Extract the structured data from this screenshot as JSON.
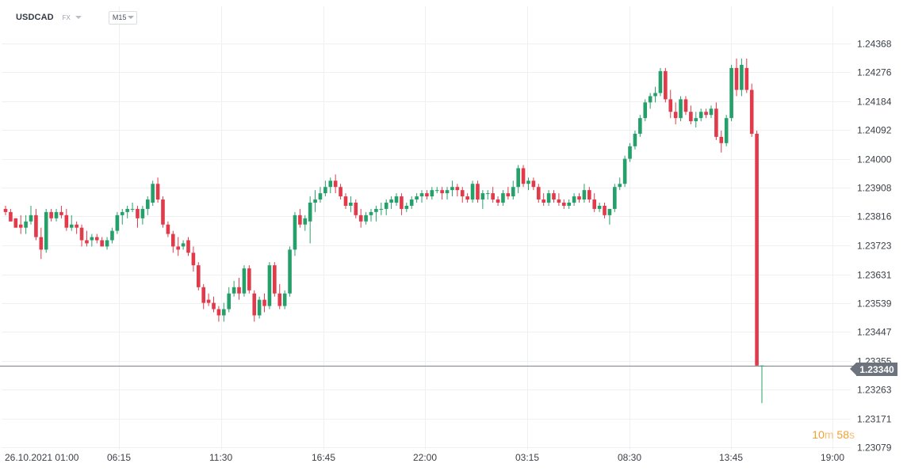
{
  "header": {
    "symbol": "USDCAD",
    "market": "FX",
    "timeframe": "M15"
  },
  "countdown": {
    "minutes": "10",
    "min_unit": "m",
    "seconds": "58",
    "sec_unit": "s"
  },
  "current_price": {
    "label": "1.23340",
    "value": 1.2334
  },
  "colors": {
    "up": "#26a06a",
    "down": "#e03a4b",
    "grid": "#eef0f2",
    "price_line": "#7b8089",
    "axis_text": "#3a3f47"
  },
  "chart_data": {
    "type": "candlestick",
    "y_ticks": [
      "1.24368",
      "1.24276",
      "1.24184",
      "1.24092",
      "1.24000",
      "1.23908",
      "1.23816",
      "1.23723",
      "1.23631",
      "1.23539",
      "1.23447",
      "1.23355",
      "1.23263",
      "1.23171",
      "1.23079"
    ],
    "ylim": [
      1.23079,
      1.24368
    ],
    "x_ticks": [
      "26.10.2021  01:00",
      "06:15",
      "11:30",
      "16:45",
      "22:00",
      "03:15",
      "08:30",
      "13:45",
      "19:00"
    ],
    "grid": true,
    "candles": [
      [
        1.2384,
        1.2385,
        1.2382,
        1.2383
      ],
      [
        1.2383,
        1.2384,
        1.238,
        1.238
      ],
      [
        1.2381,
        1.2381,
        1.2378,
        1.2378
      ],
      [
        1.2379,
        1.2382,
        1.2376,
        1.2378
      ],
      [
        1.2378,
        1.2382,
        1.2376,
        1.238
      ],
      [
        1.238,
        1.2385,
        1.2379,
        1.2382
      ],
      [
        1.2382,
        1.2384,
        1.2374,
        1.2375
      ],
      [
        1.2375,
        1.2378,
        1.2368,
        1.2371
      ],
      [
        1.2371,
        1.2384,
        1.237,
        1.2383
      ],
      [
        1.2383,
        1.2384,
        1.238,
        1.2381
      ],
      [
        1.2381,
        1.2384,
        1.238,
        1.2383
      ],
      [
        1.2383,
        1.2385,
        1.2381,
        1.2382
      ],
      [
        1.2382,
        1.2384,
        1.2377,
        1.2378
      ],
      [
        1.2378,
        1.2382,
        1.2377,
        1.2379
      ],
      [
        1.2379,
        1.238,
        1.2376,
        1.2378
      ],
      [
        1.2378,
        1.2379,
        1.2372,
        1.2374
      ],
      [
        1.2374,
        1.2377,
        1.2372,
        1.2373
      ],
      [
        1.2374,
        1.2376,
        1.2372,
        1.2375
      ],
      [
        1.2375,
        1.2376,
        1.2373,
        1.2374
      ],
      [
        1.2374,
        1.2375,
        1.2372,
        1.2372
      ],
      [
        1.2372,
        1.2375,
        1.2371,
        1.2374
      ],
      [
        1.2374,
        1.2378,
        1.2373,
        1.2377
      ],
      [
        1.2377,
        1.2383,
        1.2376,
        1.2382
      ],
      [
        1.2382,
        1.2384,
        1.2379,
        1.2383
      ],
      [
        1.2383,
        1.2385,
        1.2381,
        1.2384
      ],
      [
        1.2384,
        1.2386,
        1.2383,
        1.2384
      ],
      [
        1.2384,
        1.2385,
        1.2378,
        1.2381
      ],
      [
        1.2381,
        1.2385,
        1.2379,
        1.2384
      ],
      [
        1.2384,
        1.2388,
        1.2382,
        1.2387
      ],
      [
        1.2386,
        1.2393,
        1.2385,
        1.2392
      ],
      [
        1.2392,
        1.2394,
        1.2386,
        1.2387
      ],
      [
        1.2387,
        1.2388,
        1.2378,
        1.2379
      ],
      [
        1.2379,
        1.238,
        1.2375,
        1.2376
      ],
      [
        1.2376,
        1.2377,
        1.237,
        1.2372
      ],
      [
        1.2372,
        1.2375,
        1.2369,
        1.2371
      ],
      [
        1.2372,
        1.2374,
        1.2371,
        1.2373
      ],
      [
        1.2374,
        1.2375,
        1.2369,
        1.237
      ],
      [
        1.237,
        1.2372,
        1.2364,
        1.2366
      ],
      [
        1.2366,
        1.2367,
        1.2358,
        1.2359
      ],
      [
        1.2359,
        1.236,
        1.2352,
        1.2354
      ],
      [
        1.2355,
        1.2357,
        1.2353,
        1.2354
      ],
      [
        1.2354,
        1.2356,
        1.2351,
        1.2352
      ],
      [
        1.2352,
        1.2353,
        1.2348,
        1.235
      ],
      [
        1.235,
        1.2354,
        1.2348,
        1.2352
      ],
      [
        1.2352,
        1.2359,
        1.2351,
        1.2357
      ],
      [
        1.2357,
        1.2361,
        1.2356,
        1.2359
      ],
      [
        1.2359,
        1.2362,
        1.2355,
        1.2357
      ],
      [
        1.2357,
        1.2366,
        1.2356,
        1.2365
      ],
      [
        1.2365,
        1.2366,
        1.2357,
        1.2358
      ],
      [
        1.2357,
        1.2358,
        1.2348,
        1.235
      ],
      [
        1.235,
        1.2356,
        1.2349,
        1.2355
      ],
      [
        1.2355,
        1.2357,
        1.2351,
        1.2353
      ],
      [
        1.2353,
        1.2367,
        1.2352,
        1.2366
      ],
      [
        1.2366,
        1.2367,
        1.2356,
        1.2357
      ],
      [
        1.2357,
        1.236,
        1.2352,
        1.2353
      ],
      [
        1.2353,
        1.2358,
        1.2352,
        1.2357
      ],
      [
        1.2357,
        1.2372,
        1.2356,
        1.2371
      ],
      [
        1.2371,
        1.2383,
        1.2369,
        1.2382
      ],
      [
        1.2382,
        1.2384,
        1.2378,
        1.2379
      ],
      [
        1.2379,
        1.2382,
        1.2377,
        1.2381
      ],
      [
        1.238,
        1.2388,
        1.2373,
        1.2386
      ],
      [
        1.2386,
        1.239,
        1.2383,
        1.2387
      ],
      [
        1.2387,
        1.2391,
        1.2386,
        1.2389
      ],
      [
        1.2389,
        1.2393,
        1.2388,
        1.2391
      ],
      [
        1.2391,
        1.2394,
        1.2389,
        1.2393
      ],
      [
        1.2393,
        1.2395,
        1.2389,
        1.2391
      ],
      [
        1.2391,
        1.2392,
        1.2387,
        1.2388
      ],
      [
        1.2388,
        1.2389,
        1.2384,
        1.2385
      ],
      [
        1.2385,
        1.2388,
        1.2383,
        1.2386
      ],
      [
        1.2386,
        1.2387,
        1.2381,
        1.2382
      ],
      [
        1.2382,
        1.2384,
        1.2378,
        1.238
      ],
      [
        1.238,
        1.2383,
        1.2379,
        1.2382
      ],
      [
        1.2382,
        1.2384,
        1.238,
        1.2383
      ],
      [
        1.2383,
        1.2385,
        1.238,
        1.2384
      ],
      [
        1.2384,
        1.2386,
        1.2382,
        1.2384
      ],
      [
        1.2384,
        1.2387,
        1.2382,
        1.2386
      ],
      [
        1.2386,
        1.2388,
        1.2384,
        1.2387
      ],
      [
        1.2386,
        1.2389,
        1.2385,
        1.2388
      ],
      [
        1.2388,
        1.2389,
        1.2382,
        1.2384
      ],
      [
        1.2384,
        1.2386,
        1.2383,
        1.2385
      ],
      [
        1.2385,
        1.2388,
        1.2384,
        1.2387
      ],
      [
        1.2387,
        1.2389,
        1.2386,
        1.2388
      ],
      [
        1.2388,
        1.239,
        1.2386,
        1.2389
      ],
      [
        1.2389,
        1.239,
        1.2387,
        1.2388
      ],
      [
        1.2388,
        1.2391,
        1.2387,
        1.239
      ],
      [
        1.239,
        1.2391,
        1.2389,
        1.239
      ],
      [
        1.239,
        1.2391,
        1.2387,
        1.2389
      ],
      [
        1.2389,
        1.2391,
        1.2387,
        1.239
      ],
      [
        1.239,
        1.2393,
        1.2388,
        1.2391
      ],
      [
        1.2391,
        1.2392,
        1.2388,
        1.239
      ],
      [
        1.239,
        1.2391,
        1.2386,
        1.2388
      ],
      [
        1.2388,
        1.2389,
        1.2386,
        1.2387
      ],
      [
        1.2387,
        1.2393,
        1.2386,
        1.2392
      ],
      [
        1.2392,
        1.2393,
        1.2386,
        1.2387
      ],
      [
        1.2387,
        1.239,
        1.2384,
        1.2389
      ],
      [
        1.2389,
        1.239,
        1.2387,
        1.2389
      ],
      [
        1.2389,
        1.2391,
        1.2386,
        1.2387
      ],
      [
        1.2387,
        1.2388,
        1.2385,
        1.2386
      ],
      [
        1.2386,
        1.239,
        1.2385,
        1.2389
      ],
      [
        1.2389,
        1.2391,
        1.2387,
        1.2388
      ],
      [
        1.2388,
        1.2393,
        1.2387,
        1.2391
      ],
      [
        1.2391,
        1.2398,
        1.2389,
        1.2397
      ],
      [
        1.2397,
        1.2398,
        1.2391,
        1.2392
      ],
      [
        1.2392,
        1.2394,
        1.239,
        1.2393
      ],
      [
        1.2393,
        1.2394,
        1.239,
        1.2391
      ],
      [
        1.2391,
        1.2392,
        1.2386,
        1.2387
      ],
      [
        1.2387,
        1.2389,
        1.2385,
        1.2386
      ],
      [
        1.2386,
        1.239,
        1.2385,
        1.2389
      ],
      [
        1.2389,
        1.239,
        1.2386,
        1.2387
      ],
      [
        1.2387,
        1.2389,
        1.2385,
        1.2386
      ],
      [
        1.2386,
        1.2387,
        1.2384,
        1.2385
      ],
      [
        1.2385,
        1.2387,
        1.2384,
        1.2386
      ],
      [
        1.2386,
        1.2389,
        1.2385,
        1.2388
      ],
      [
        1.2388,
        1.2389,
        1.2386,
        1.2387
      ],
      [
        1.2387,
        1.2392,
        1.2386,
        1.239
      ],
      [
        1.239,
        1.2391,
        1.2386,
        1.2387
      ],
      [
        1.2387,
        1.2389,
        1.2383,
        1.2384
      ],
      [
        1.2384,
        1.2386,
        1.2383,
        1.2385
      ],
      [
        1.2385,
        1.2386,
        1.2381,
        1.2382
      ],
      [
        1.2382,
        1.2384,
        1.2379,
        1.2384
      ],
      [
        1.2384,
        1.2392,
        1.2383,
        1.2391
      ],
      [
        1.2391,
        1.2394,
        1.239,
        1.2392
      ],
      [
        1.2392,
        1.2401,
        1.2391,
        1.24
      ],
      [
        1.24,
        1.2405,
        1.2399,
        1.2404
      ],
      [
        1.2404,
        1.2409,
        1.2403,
        1.2408
      ],
      [
        1.2408,
        1.2414,
        1.2407,
        1.2413
      ],
      [
        1.2413,
        1.2419,
        1.2412,
        1.2418
      ],
      [
        1.2418,
        1.2421,
        1.2416,
        1.242
      ],
      [
        1.242,
        1.2423,
        1.2418,
        1.2421
      ],
      [
        1.2421,
        1.2429,
        1.242,
        1.2428
      ],
      [
        1.2428,
        1.2429,
        1.2418,
        1.2419
      ],
      [
        1.2419,
        1.2422,
        1.2413,
        1.2415
      ],
      [
        1.2415,
        1.2418,
        1.2411,
        1.2413
      ],
      [
        1.2413,
        1.242,
        1.2412,
        1.2419
      ],
      [
        1.2419,
        1.242,
        1.2414,
        1.2415
      ],
      [
        1.2415,
        1.2417,
        1.2411,
        1.2412
      ],
      [
        1.2412,
        1.2415,
        1.241,
        1.2413
      ],
      [
        1.2413,
        1.2416,
        1.2412,
        1.2415
      ],
      [
        1.2415,
        1.2416,
        1.2413,
        1.2414
      ],
      [
        1.2414,
        1.2417,
        1.2413,
        1.2416
      ],
      [
        1.2416,
        1.2418,
        1.2406,
        1.2407
      ],
      [
        1.2407,
        1.2409,
        1.2402,
        1.2405
      ],
      [
        1.2405,
        1.2414,
        1.2404,
        1.2413
      ],
      [
        1.2413,
        1.243,
        1.2412,
        1.2429
      ],
      [
        1.2429,
        1.2432,
        1.242,
        1.2422
      ],
      [
        1.2422,
        1.2432,
        1.242,
        1.243
      ],
      [
        1.2429,
        1.2432,
        1.2421,
        1.2422
      ],
      [
        1.2422,
        1.2424,
        1.2407,
        1.2408
      ],
      [
        1.2408,
        1.2409,
        1.2334,
        1.2334
      ],
      [
        1.2334,
        1.2334,
        1.2322,
        1.2334
      ]
    ]
  }
}
